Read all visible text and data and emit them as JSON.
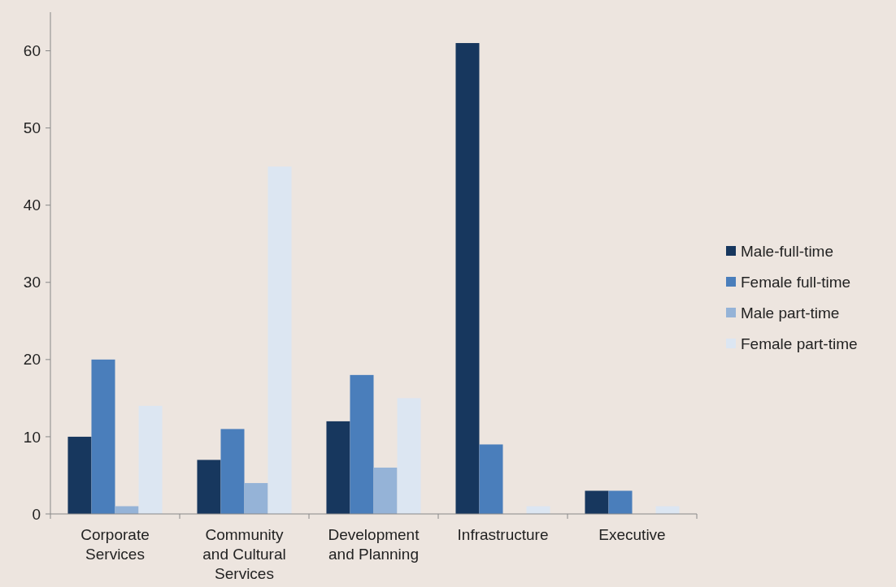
{
  "chart_data": {
    "type": "bar",
    "categories": [
      "Corporate Services",
      "Community and Cultural Services",
      "Development and Planning",
      "Infrastructure",
      "Executive"
    ],
    "series": [
      {
        "name": "Male-full-time",
        "color": "#17375e",
        "values": [
          10,
          7,
          12,
          61,
          3
        ]
      },
      {
        "name": "Female full-time",
        "color": "#4a7ebb",
        "values": [
          20,
          11,
          18,
          9,
          3
        ]
      },
      {
        "name": "Male part-time",
        "color": "#95b3d7",
        "values": [
          1,
          4,
          6,
          0,
          0
        ]
      },
      {
        "name": "Female part-time",
        "color": "#dce6f2",
        "values": [
          14,
          45,
          15,
          1,
          1
        ]
      }
    ],
    "ylim": [
      0,
      65
    ],
    "yticks": [
      0,
      10,
      20,
      30,
      40,
      50,
      60
    ],
    "grid": false,
    "legend": "right"
  }
}
